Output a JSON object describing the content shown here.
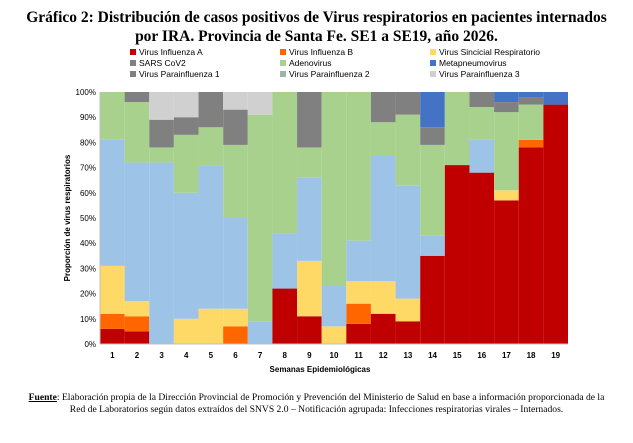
{
  "title_line1": "Gráfico 2: Distribución de casos positivos de Virus respiratorios en pacientes internados",
  "title_line2": "por IRA. Provincia de Santa Fe. SE1 a SE19, año 2026.",
  "footnote": {
    "label": "Fuente",
    "text": ": Elaboración propia de la Dirección Provincial de Promoción y Prevención del Ministerio de Salud en base a información proporcionada de la Red de Laboratorios según datos extraídos del SNVS 2.0 – Notificación agrupada: Infecciones respiratorias virales – Internados."
  },
  "chart_data": {
    "type": "bar",
    "stacked": "percent",
    "xlabel": "Semanas Epidemiológicas",
    "ylabel": "Proporción de virus respiratorios",
    "ylim": [
      0,
      100
    ],
    "yticks": [
      "0%",
      "10%",
      "20%",
      "30%",
      "40%",
      "50%",
      "60%",
      "70%",
      "80%",
      "90%",
      "100%"
    ],
    "categories": [
      "1",
      "2",
      "3",
      "4",
      "5",
      "6",
      "7",
      "8",
      "9",
      "10",
      "11",
      "12",
      "13",
      "14",
      "15",
      "16",
      "17",
      "18",
      "19"
    ],
    "legend_position": "top",
    "series": [
      {
        "name": "Virus Influenza A",
        "color": "#c00000",
        "values": [
          6,
          5,
          0,
          0,
          0,
          0,
          0,
          22,
          11,
          0,
          8,
          12,
          9,
          35,
          71,
          68,
          57,
          78,
          95
        ]
      },
      {
        "name": "Virus Influenza B",
        "color": "#ff6600",
        "values": [
          6,
          6,
          0,
          0,
          0,
          7,
          0,
          0,
          0,
          0,
          8,
          0,
          0,
          0,
          0,
          0,
          0,
          3,
          0
        ]
      },
      {
        "name": "Virus Sincicial Respiratorio",
        "color": "#ffd966",
        "values": [
          19,
          6,
          0,
          10,
          14,
          7,
          0,
          0,
          22,
          7,
          9,
          13,
          9,
          0,
          0,
          0,
          4,
          0,
          0
        ]
      },
      {
        "name": "SARS CoV2",
        "color": "#808080",
        "values": [
          0,
          0,
          0,
          0,
          0,
          0,
          0,
          0,
          0,
          0,
          0,
          0,
          0,
          0,
          0,
          0,
          0,
          0,
          0
        ]
      },
      {
        "name": "Adenovirus",
        "color": "#a9d18e",
        "values": [
          0,
          0,
          0,
          0,
          0,
          0,
          0,
          0,
          0,
          0,
          0,
          0,
          0,
          0,
          0,
          0,
          0,
          0,
          0
        ]
      },
      {
        "name": "Metapneumovirus",
        "color": "#4472c4",
        "values": [
          0,
          0,
          0,
          0,
          0,
          0,
          0,
          0,
          0,
          0,
          0,
          0,
          0,
          14,
          0,
          0,
          4,
          2,
          5
        ]
      },
      {
        "name": "Virus Parainfluenza 1",
        "color": "#808080",
        "values": [
          0,
          4,
          11,
          7,
          14,
          14,
          0,
          0,
          22,
          0,
          0,
          12,
          9,
          7,
          0,
          6,
          4,
          3,
          0
        ]
      },
      {
        "name": "Virus Parainfluenza 2",
        "color": "#9db4a8",
        "values": [
          0,
          0,
          0,
          0,
          0,
          0,
          0,
          0,
          0,
          0,
          0,
          0,
          0,
          0,
          0,
          0,
          0,
          0,
          0
        ]
      },
      {
        "name": "Virus Parainfluenza 3",
        "color": "#d0d0d0",
        "values": [
          0,
          0,
          11,
          10,
          0,
          7,
          9,
          0,
          0,
          0,
          0,
          0,
          0,
          0,
          0,
          0,
          0,
          0,
          0
        ]
      }
    ],
    "segment_colors_order_bottom_to_top": "Influenza A, Influenza B, VSR, (light blue), (green), Parainfluenza 1, Parainfluenza 3, Metapneumovirus",
    "extra_segments": {
      "lightblue": {
        "color": "#9dc3e6",
        "values": [
          50,
          55,
          72,
          50,
          57,
          36,
          9,
          22,
          33,
          16,
          16,
          50,
          45,
          8,
          0,
          13,
          0,
          0,
          0
        ]
      },
      "green": {
        "color": "#a9d18e",
        "values": [
          19,
          24,
          6,
          23,
          15,
          29,
          82,
          56,
          12,
          77,
          59,
          13,
          28,
          36,
          29,
          13,
          31,
          14,
          0
        ]
      }
    }
  }
}
